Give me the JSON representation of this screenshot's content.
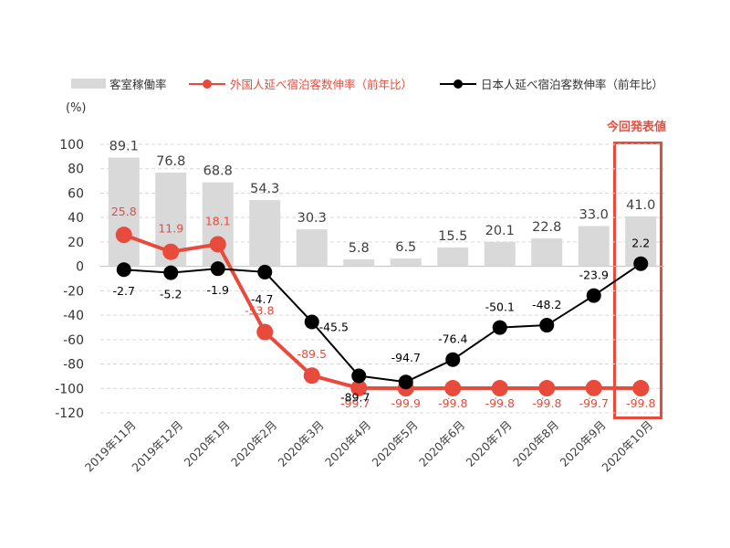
{
  "legend": {
    "occupancy": "客室稼働率",
    "foreign": "外国人延べ宿泊客数伸率（前年比）",
    "japanese": "日本人延べ宿泊客数伸率（前年比）"
  },
  "unit_label": "(%)",
  "highlight_label": "今回発表値",
  "colors": {
    "bar": "#d9d9d9",
    "foreign": "#e84b3c",
    "japanese": "#000000",
    "grid": "#d9d9d9"
  },
  "chart_data": {
    "type": "bar+line",
    "categories": [
      "2019年11月",
      "2019年12月",
      "2020年1月",
      "2020年2月",
      "2020年3月",
      "2020年4月",
      "2020年5月",
      "2020年6月",
      "2020年7月",
      "2020年8月",
      "2020年9月",
      "2020年10月"
    ],
    "ylim": [
      -120,
      100
    ],
    "yticks": [
      100,
      80,
      60,
      40,
      20,
      0,
      -20,
      -40,
      -60,
      -80,
      -100,
      -120
    ],
    "grid": true,
    "legend_position": "top",
    "series": [
      {
        "name": "客室稼働率",
        "type": "bar",
        "values": [
          89.1,
          76.8,
          68.8,
          54.3,
          30.3,
          5.8,
          6.5,
          15.5,
          20.1,
          22.8,
          33.0,
          41.0
        ],
        "labels": [
          "89.1",
          "76.8",
          "68.8",
          "54.3",
          "30.3",
          "5.8",
          "6.5",
          "15.5",
          "20.1",
          "22.8",
          "33.0",
          "41.0"
        ]
      },
      {
        "name": "外国人延べ宿泊客数伸率（前年比）",
        "type": "line",
        "values": [
          25.8,
          11.9,
          18.1,
          -53.8,
          -89.5,
          -99.7,
          -99.9,
          -99.8,
          -99.8,
          -99.8,
          -99.7,
          -99.8
        ],
        "labels": [
          "25.8",
          "11.9",
          "18.1",
          "-53.8",
          "-89.5",
          "-99.7",
          "-99.9",
          "-99.8",
          "-99.8",
          "-99.8",
          "-99.7",
          "-99.8"
        ]
      },
      {
        "name": "日本人延べ宿泊客数伸率（前年比）",
        "type": "line",
        "values": [
          -2.7,
          -5.2,
          -1.9,
          -4.7,
          -45.5,
          -89.7,
          -94.7,
          -76.4,
          -50.1,
          -48.2,
          -23.9,
          2.2
        ],
        "labels": [
          "-2.7",
          "-5.2",
          "-1.9",
          "-4.7",
          "-45.5",
          "-89.7",
          "-94.7",
          "-76.4",
          "-50.1",
          "-48.2",
          "-23.9",
          "2.2"
        ]
      }
    ]
  }
}
